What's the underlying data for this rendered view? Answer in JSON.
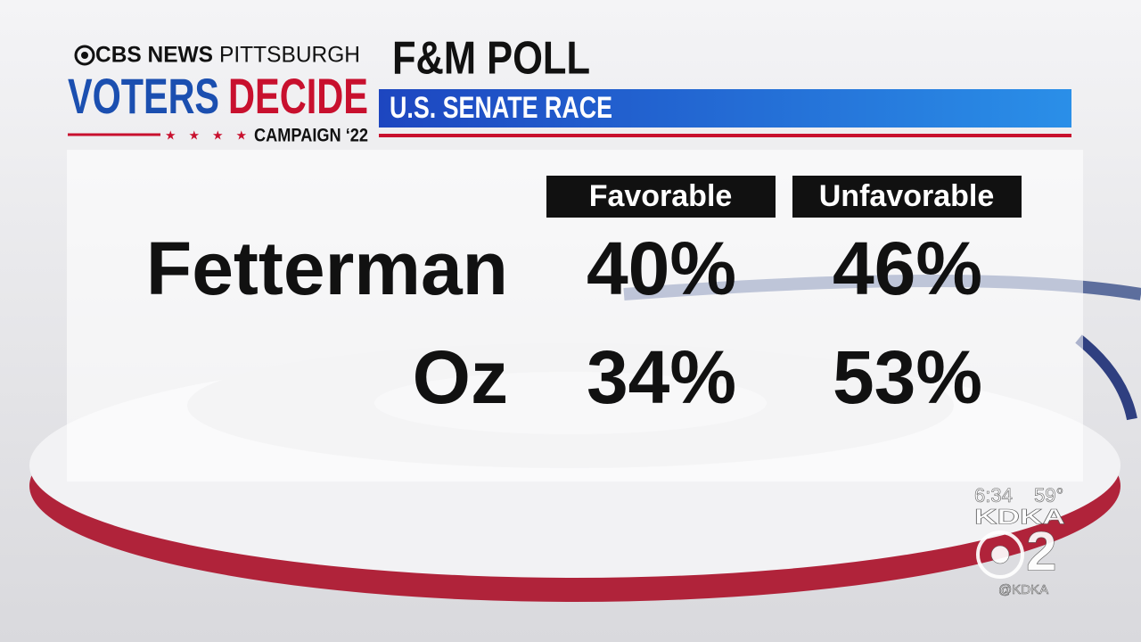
{
  "branding": {
    "network": "CBS NEWS",
    "station": "PITTSBURGH",
    "show_word1": "VOTERS",
    "show_word2": "DECIDE",
    "campaign": "CAMPAIGN ‘22"
  },
  "header": {
    "title": "F&M POLL",
    "subtitle": "U.S. SENATE RACE"
  },
  "table": {
    "columns": [
      "Favorable",
      "Unfavorable"
    ],
    "rows": [
      [
        "Fetterman",
        "40%",
        "46%"
      ],
      [
        "Oz",
        "34%",
        "53%"
      ]
    ]
  },
  "bug": {
    "time": "6:34",
    "temperature": "59°",
    "station": "KDKA",
    "channel": "2",
    "handle": "@KDKA"
  }
}
